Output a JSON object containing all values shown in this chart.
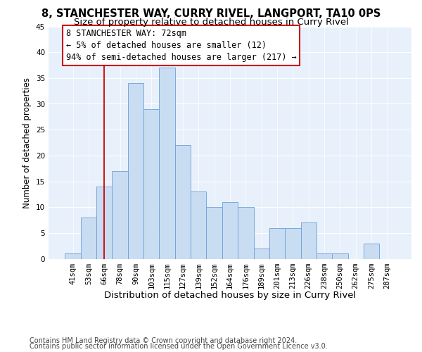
{
  "title": "8, STANCHESTER WAY, CURRY RIVEL, LANGPORT, TA10 0PS",
  "subtitle": "Size of property relative to detached houses in Curry Rivel",
  "xlabel": "Distribution of detached houses by size in Curry Rivel",
  "ylabel": "Number of detached properties",
  "bar_color": "#c9ddf2",
  "bar_edge_color": "#6a9fd8",
  "categories": [
    "41sqm",
    "53sqm",
    "66sqm",
    "78sqm",
    "90sqm",
    "103sqm",
    "115sqm",
    "127sqm",
    "139sqm",
    "152sqm",
    "164sqm",
    "176sqm",
    "189sqm",
    "201sqm",
    "213sqm",
    "226sqm",
    "238sqm",
    "250sqm",
    "262sqm",
    "275sqm",
    "287sqm"
  ],
  "values": [
    1,
    8,
    14,
    17,
    34,
    29,
    37,
    22,
    13,
    10,
    11,
    10,
    2,
    6,
    6,
    7,
    1,
    1,
    0,
    3,
    0
  ],
  "vline_x": 2,
  "vline_color": "#cc0000",
  "annotation_line1": "8 STANCHESTER WAY: 72sqm",
  "annotation_line2": "← 5% of detached houses are smaller (12)",
  "annotation_line3": "94% of semi-detached houses are larger (217) →",
  "ylim": [
    0,
    45
  ],
  "yticks": [
    0,
    5,
    10,
    15,
    20,
    25,
    30,
    35,
    40,
    45
  ],
  "background_color": "#e8f0fb",
  "footer_line1": "Contains HM Land Registry data © Crown copyright and database right 2024.",
  "footer_line2": "Contains public sector information licensed under the Open Government Licence v3.0.",
  "grid_color": "#ffffff",
  "title_fontsize": 10.5,
  "subtitle_fontsize": 9.5,
  "xlabel_fontsize": 9.5,
  "ylabel_fontsize": 8.5,
  "tick_fontsize": 7.5,
  "annotation_fontsize": 8.5,
  "footer_fontsize": 7.0
}
